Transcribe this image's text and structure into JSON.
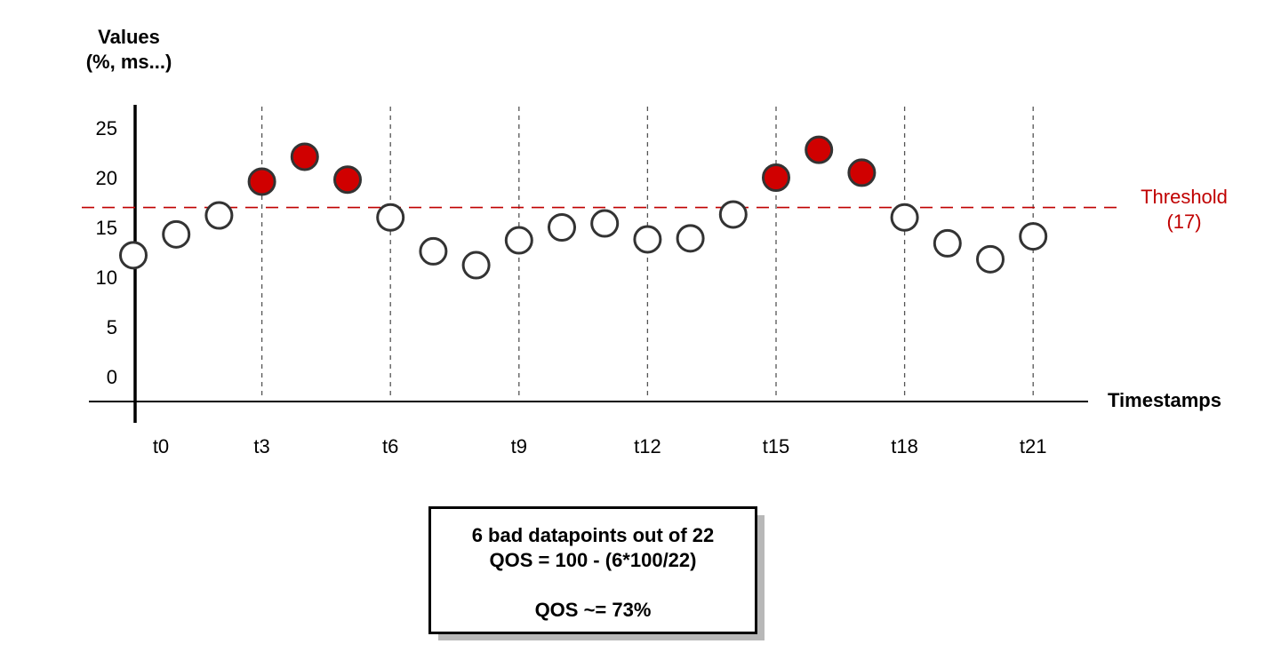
{
  "chart_data": {
    "type": "scatter",
    "ylabel_line1": "Values",
    "ylabel_line2": "(%, ms...)",
    "xlabel": "Timestamps",
    "ylim": [
      0,
      25
    ],
    "yticks": [
      0,
      5,
      10,
      15,
      20,
      25
    ],
    "xticks": [
      {
        "index": 0,
        "label": "t0"
      },
      {
        "index": 3,
        "label": "t3"
      },
      {
        "index": 6,
        "label": "t6"
      },
      {
        "index": 9,
        "label": "t9"
      },
      {
        "index": 12,
        "label": "t12"
      },
      {
        "index": 15,
        "label": "t15"
      },
      {
        "index": 18,
        "label": "t18"
      },
      {
        "index": 21,
        "label": "t21"
      }
    ],
    "threshold": {
      "value": 17,
      "label_line1": "Threshold",
      "label_line2": "(17)",
      "color": "#c00000"
    },
    "points": [
      {
        "x": 0,
        "y": 12.2,
        "bad": false
      },
      {
        "x": 1,
        "y": 14.3,
        "bad": false
      },
      {
        "x": 2,
        "y": 16.2,
        "bad": false
      },
      {
        "x": 3,
        "y": 19.6,
        "bad": true
      },
      {
        "x": 4,
        "y": 22.1,
        "bad": true
      },
      {
        "x": 5,
        "y": 19.8,
        "bad": true
      },
      {
        "x": 6,
        "y": 16.0,
        "bad": false
      },
      {
        "x": 7,
        "y": 12.6,
        "bad": false
      },
      {
        "x": 8,
        "y": 11.2,
        "bad": false
      },
      {
        "x": 9,
        "y": 13.7,
        "bad": false
      },
      {
        "x": 10,
        "y": 15.0,
        "bad": false
      },
      {
        "x": 11,
        "y": 15.4,
        "bad": false
      },
      {
        "x": 12,
        "y": 13.8,
        "bad": false
      },
      {
        "x": 13,
        "y": 13.9,
        "bad": false
      },
      {
        "x": 14,
        "y": 16.3,
        "bad": false
      },
      {
        "x": 15,
        "y": 20.0,
        "bad": true
      },
      {
        "x": 16,
        "y": 22.8,
        "bad": true
      },
      {
        "x": 17,
        "y": 20.5,
        "bad": true
      },
      {
        "x": 18,
        "y": 16.0,
        "bad": false
      },
      {
        "x": 19,
        "y": 13.4,
        "bad": false
      },
      {
        "x": 20,
        "y": 11.8,
        "bad": false
      },
      {
        "x": 21,
        "y": 14.1,
        "bad": false
      }
    ],
    "colors": {
      "bad_fill": "#d00000",
      "good_fill": "#ffffff",
      "stroke": "#333333"
    }
  },
  "qos_box": {
    "line1": "6 bad datapoints out of 22",
    "line2": "QOS = 100 - (6*100/22)",
    "line3": "QOS ~= 73%"
  }
}
